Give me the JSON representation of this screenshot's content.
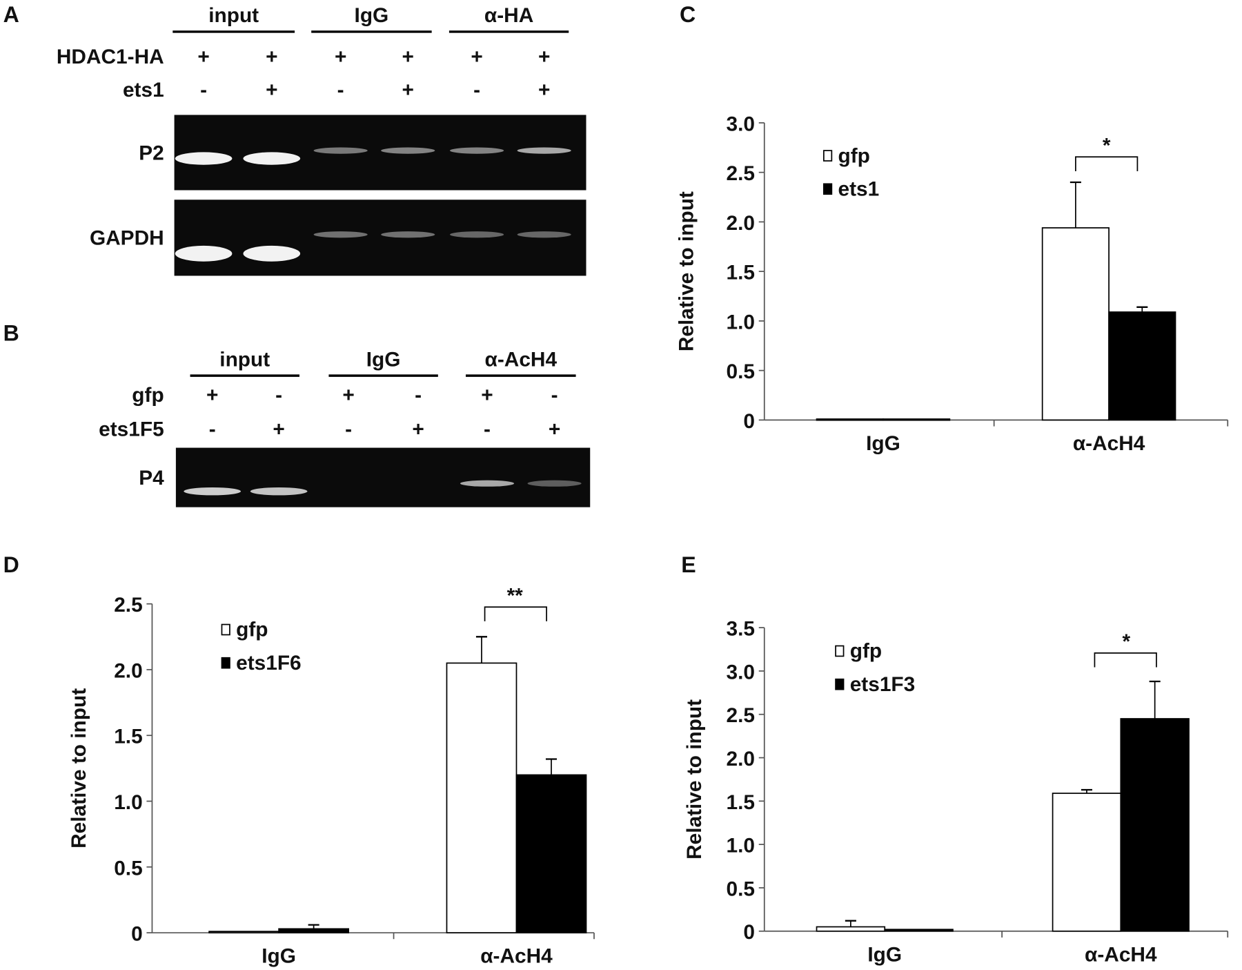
{
  "panels": {
    "a": "A",
    "b": "B",
    "c": "C",
    "d": "D",
    "e": "E"
  },
  "gel_a": {
    "groups": [
      "input",
      "IgG",
      "α-HA"
    ],
    "rows": [
      {
        "label": "HDAC1-HA",
        "signs": [
          "+",
          "+",
          "+",
          "+",
          "+",
          "+"
        ]
      },
      {
        "label": "ets1",
        "signs": [
          "-",
          "+",
          "-",
          "+",
          "-",
          "+"
        ]
      }
    ],
    "gels": [
      {
        "label": "P2",
        "intensity": [
          1.0,
          1.0,
          0.35,
          0.4,
          0.4,
          0.6
        ]
      },
      {
        "label": "GAPDH",
        "intensity": [
          1.0,
          1.0,
          0.3,
          0.3,
          0.25,
          0.25
        ]
      }
    ]
  },
  "gel_b": {
    "groups": [
      "input",
      "IgG",
      "α-AcH4"
    ],
    "rows": [
      {
        "label": "gfp",
        "signs": [
          "+",
          "-",
          "+",
          "-",
          "+",
          "-"
        ]
      },
      {
        "label": "ets1F5",
        "signs": [
          "-",
          "+",
          "-",
          "+",
          "-",
          "+"
        ]
      }
    ],
    "gels": [
      {
        "label": "P4",
        "intensity": [
          0.8,
          0.75,
          0.0,
          0.0,
          0.6,
          0.2
        ]
      }
    ]
  },
  "chart_data": [
    {
      "id": "c",
      "type": "bar",
      "title": "",
      "xlabel": "",
      "ylabel": "Relative to input",
      "categories": [
        "IgG",
        "α-AcH4"
      ],
      "ylim": [
        0,
        3.0
      ],
      "yticks": [
        "0",
        "0.5",
        "1.0",
        "1.5",
        "2.0",
        "2.5",
        "3.0"
      ],
      "series": [
        {
          "name": "gfp",
          "color": "#ffffff",
          "values": [
            0.01,
            1.94
          ],
          "errors": [
            0,
            0.46
          ]
        },
        {
          "name": "ets1",
          "color": "#000000",
          "values": [
            0.01,
            1.09
          ],
          "errors": [
            0,
            0.05
          ]
        }
      ],
      "annotation": "*",
      "legend": "top-left"
    },
    {
      "id": "d",
      "type": "bar",
      "title": "",
      "xlabel": "",
      "ylabel": "Relative to input",
      "categories": [
        "IgG",
        "α-AcH4"
      ],
      "ylim": [
        0,
        2.5
      ],
      "yticks": [
        "0",
        "0.5",
        "1.0",
        "1.5",
        "2.0",
        "2.5"
      ],
      "series": [
        {
          "name": "gfp",
          "color": "#ffffff",
          "values": [
            0.01,
            2.05
          ],
          "errors": [
            0,
            0.2
          ]
        },
        {
          "name": "ets1F6",
          "color": "#000000",
          "values": [
            0.03,
            1.2
          ],
          "errors": [
            0.03,
            0.12
          ]
        }
      ],
      "annotation": "**",
      "legend": "top-left"
    },
    {
      "id": "e",
      "type": "bar",
      "title": "",
      "xlabel": "",
      "ylabel": "Relative to input",
      "categories": [
        "IgG",
        "α-AcH4"
      ],
      "ylim": [
        0,
        3.5
      ],
      "yticks": [
        "0",
        "0.5",
        "1.0",
        "1.5",
        "2.0",
        "2.5",
        "3.0",
        "3.5"
      ],
      "series": [
        {
          "name": "gfp",
          "color": "#ffffff",
          "values": [
            0.05,
            1.59
          ],
          "errors": [
            0.07,
            0.04
          ]
        },
        {
          "name": "ets1F3",
          "color": "#000000",
          "values": [
            0.02,
            2.45
          ],
          "errors": [
            0,
            0.43
          ]
        }
      ],
      "annotation": "*",
      "legend": "top-left"
    }
  ]
}
